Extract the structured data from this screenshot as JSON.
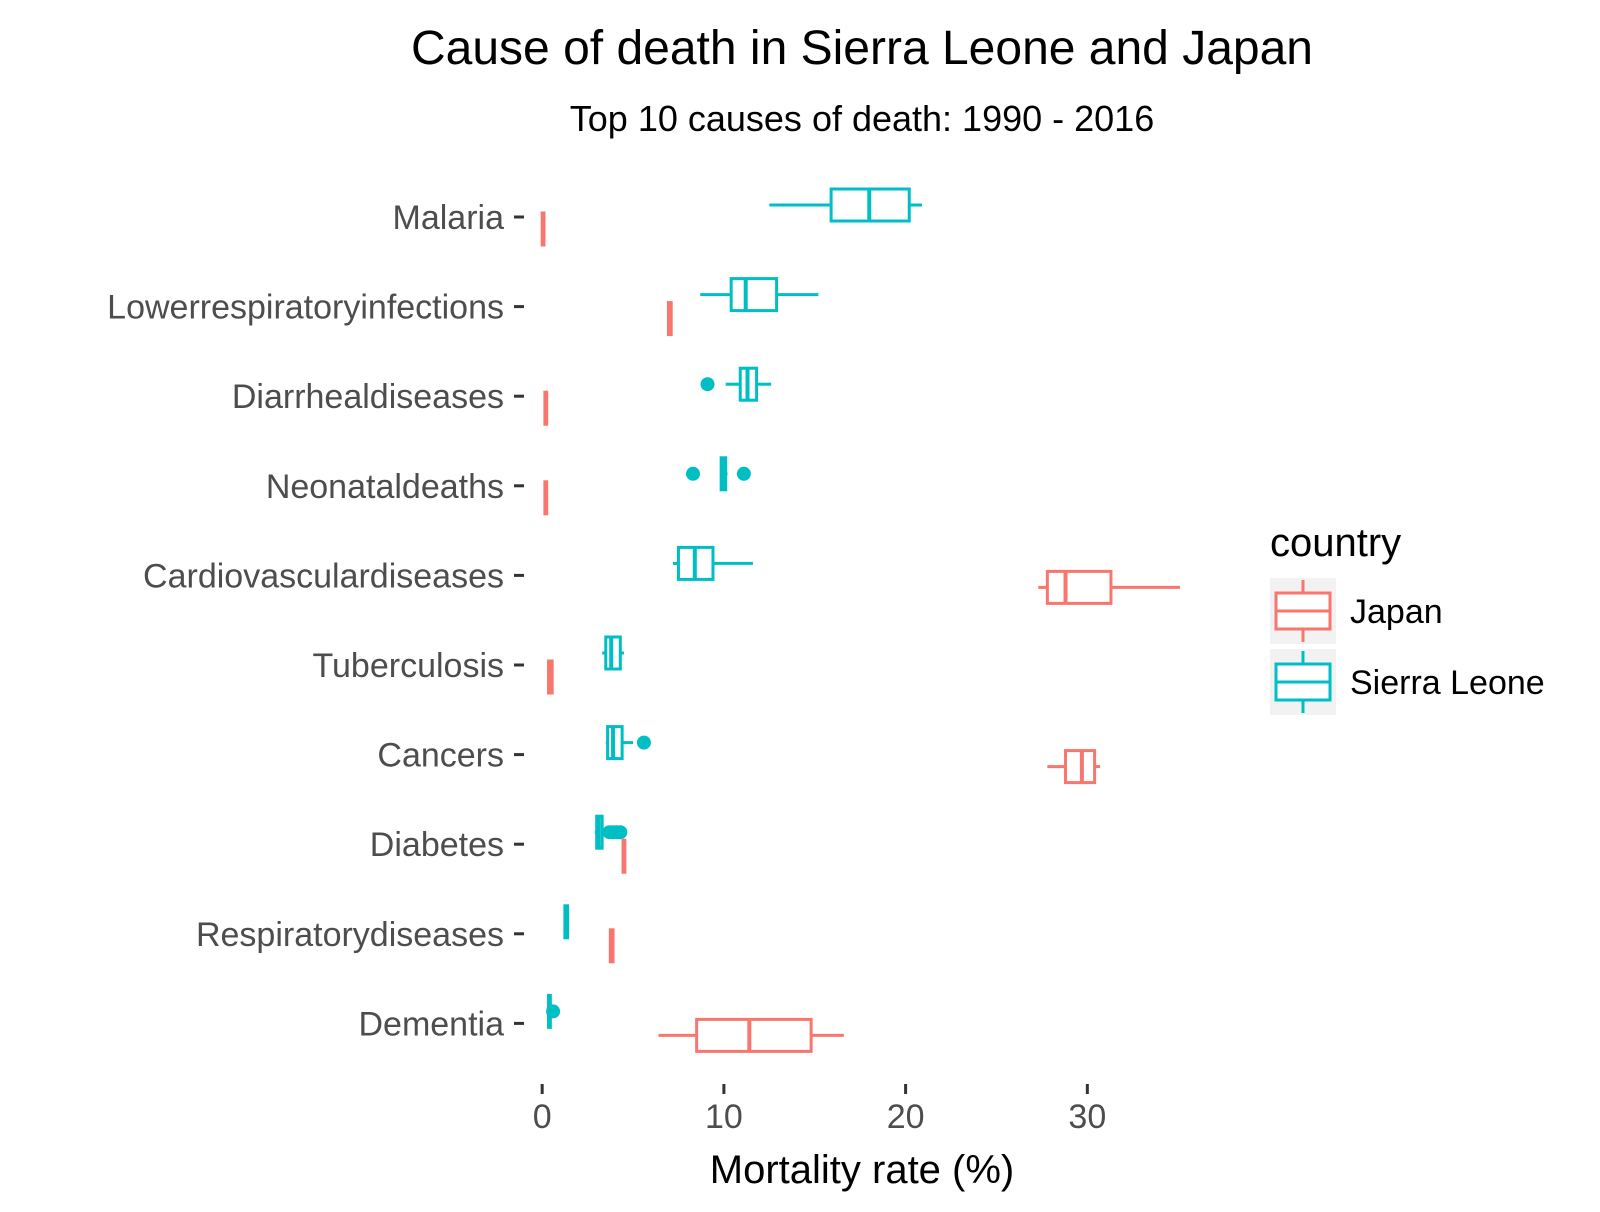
{
  "chart_data": {
    "type": "boxplot",
    "orientation": "horizontal",
    "title": "Cause of death in Sierra Leone and Japan",
    "subtitle": "Top 10 causes of death: 1990 - 2016",
    "xlabel": "Mortality rate (%)",
    "ylabel": "",
    "xlim": [
      -1.0,
      36.2
    ],
    "xticks": [
      0,
      10,
      20,
      30
    ],
    "grid": false,
    "legend": {
      "title": "country",
      "position": "right"
    },
    "categories": [
      "Malaria",
      "Lowerrespiratoryinfections",
      "Diarrhealdiseases",
      "Neonataldeaths",
      "Cardiovasculardiseases",
      "Tuberculosis",
      "Cancers",
      "Diabetes",
      "Respiratorydiseases",
      "Dementia"
    ],
    "series": [
      {
        "name": "Japan",
        "color": "#F8766D",
        "boxes": [
          {
            "category": "Malaria",
            "whisker_low": 0.0,
            "q1": 0.0,
            "median": 0.05,
            "q3": 0.1,
            "whisker_high": 0.1,
            "outliers": []
          },
          {
            "category": "Lowerrespiratoryinfections",
            "whisker_low": 6.9,
            "q1": 6.95,
            "median": 7.0,
            "q3": 7.1,
            "whisker_high": 7.15,
            "outliers": []
          },
          {
            "category": "Diarrhealdiseases",
            "whisker_low": 0.1,
            "q1": 0.15,
            "median": 0.2,
            "q3": 0.25,
            "whisker_high": 0.3,
            "outliers": []
          },
          {
            "category": "Neonataldeaths",
            "whisker_low": 0.1,
            "q1": 0.15,
            "median": 0.2,
            "q3": 0.25,
            "whisker_high": 0.3,
            "outliers": []
          },
          {
            "category": "Cardiovasculardiseases",
            "whisker_low": 27.3,
            "q1": 27.8,
            "median": 28.8,
            "q3": 31.3,
            "whisker_high": 35.1,
            "outliers": []
          },
          {
            "category": "Tuberculosis",
            "whisker_low": 0.3,
            "q1": 0.35,
            "median": 0.45,
            "q3": 0.55,
            "whisker_high": 0.6,
            "outliers": []
          },
          {
            "category": "Cancers",
            "whisker_low": 27.8,
            "q1": 28.8,
            "median": 29.7,
            "q3": 30.4,
            "whisker_high": 30.7,
            "outliers": []
          },
          {
            "category": "Diabetes",
            "whisker_low": 4.4,
            "q1": 4.45,
            "median": 4.5,
            "q3": 4.55,
            "whisker_high": 4.6,
            "outliers": []
          },
          {
            "category": "Respiratorydiseases",
            "whisker_low": 3.7,
            "q1": 3.75,
            "median": 3.8,
            "q3": 3.9,
            "whisker_high": 3.95,
            "outliers": []
          },
          {
            "category": "Dementia",
            "whisker_low": 6.4,
            "q1": 8.5,
            "median": 11.4,
            "q3": 14.8,
            "whisker_high": 16.6,
            "outliers": []
          }
        ]
      },
      {
        "name": "Sierra Leone",
        "color": "#00BFC4",
        "boxes": [
          {
            "category": "Malaria",
            "whisker_low": 12.5,
            "q1": 15.9,
            "median": 18.0,
            "q3": 20.2,
            "whisker_high": 20.9,
            "outliers": []
          },
          {
            "category": "Lowerrespiratoryinfections",
            "whisker_low": 8.7,
            "q1": 10.4,
            "median": 11.2,
            "q3": 12.9,
            "whisker_high": 15.2,
            "outliers": []
          },
          {
            "category": "Diarrhealdiseases",
            "whisker_low": 10.1,
            "q1": 10.9,
            "median": 11.3,
            "q3": 11.8,
            "whisker_high": 12.6,
            "outliers": [
              9.1
            ]
          },
          {
            "category": "Neonataldeaths",
            "whisker_low": 9.8,
            "q1": 9.85,
            "median": 10.0,
            "q3": 10.1,
            "whisker_high": 10.2,
            "outliers": [
              8.3,
              11.1
            ]
          },
          {
            "category": "Cardiovasculardiseases",
            "whisker_low": 7.2,
            "q1": 7.5,
            "median": 8.4,
            "q3": 9.4,
            "whisker_high": 11.6,
            "outliers": []
          },
          {
            "category": "Tuberculosis",
            "whisker_low": 3.3,
            "q1": 3.5,
            "median": 3.8,
            "q3": 4.3,
            "whisker_high": 4.5,
            "outliers": []
          },
          {
            "category": "Cancers",
            "whisker_low": 3.5,
            "q1": 3.6,
            "median": 3.9,
            "q3": 4.4,
            "whisker_high": 5.0,
            "outliers": [
              5.6
            ]
          },
          {
            "category": "Diabetes",
            "whisker_low": 2.9,
            "q1": 3.0,
            "median": 3.1,
            "q3": 3.3,
            "whisker_high": 3.5,
            "outliers": [
              3.7,
              3.9,
              4.1,
              4.3
            ]
          },
          {
            "category": "Respiratorydiseases",
            "whisker_low": 1.2,
            "q1": 1.25,
            "median": 1.3,
            "q3": 1.4,
            "whisker_high": 1.45,
            "outliers": []
          },
          {
            "category": "Dementia",
            "whisker_low": 0.3,
            "q1": 0.35,
            "median": 0.4,
            "q3": 0.45,
            "whisker_high": 0.5,
            "outliers": [
              0.6
            ]
          }
        ]
      }
    ]
  }
}
